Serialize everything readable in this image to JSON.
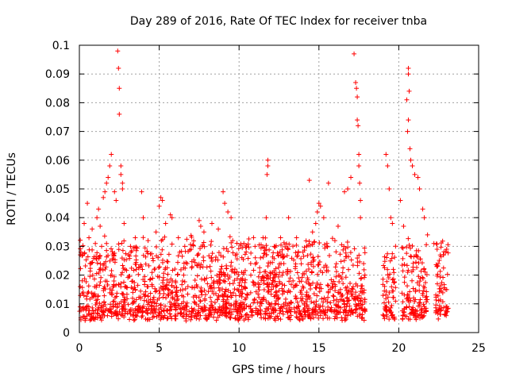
{
  "chart_data": {
    "type": "scatter",
    "title": "Day 289 of 2016, Rate Of TEC Index for receiver tnba",
    "xlabel": "GPS time / hours",
    "ylabel": "ROTI / TECUs",
    "xlim": [
      0,
      25
    ],
    "ylim": [
      0,
      0.1
    ],
    "x_ticks": [
      0,
      5,
      10,
      15,
      20,
      25
    ],
    "y_ticks": [
      0,
      0.01,
      0.02,
      0.03,
      0.04,
      0.05,
      0.06,
      0.07,
      0.08,
      0.09,
      0.1
    ],
    "x_tick_labels": [
      "0",
      "5",
      "10",
      "15",
      "20",
      "25"
    ],
    "y_tick_labels": [
      "0",
      "0.01",
      "0.02",
      "0.03",
      "0.04",
      "0.05",
      "0.06",
      "0.07",
      "0.08",
      "0.09",
      "0.1"
    ],
    "grid": true,
    "marker": "+",
    "series": [
      {
        "name": "ROTI",
        "color": "#ff0000",
        "points": [
          [
            0.1,
            0.028
          ],
          [
            0.2,
            0.027
          ],
          [
            0.3,
            0.038
          ],
          [
            0.5,
            0.045
          ],
          [
            0.6,
            0.033
          ],
          [
            0.8,
            0.036
          ],
          [
            1.0,
            0.031
          ],
          [
            1.1,
            0.04
          ],
          [
            1.2,
            0.043
          ],
          [
            1.3,
            0.037
          ],
          [
            1.5,
            0.047
          ],
          [
            1.6,
            0.049
          ],
          [
            1.7,
            0.052
          ],
          [
            1.8,
            0.054
          ],
          [
            1.9,
            0.058
          ],
          [
            2.0,
            0.062
          ],
          [
            2.2,
            0.049
          ],
          [
            2.3,
            0.046
          ],
          [
            2.4,
            0.098
          ],
          [
            2.45,
            0.092
          ],
          [
            2.5,
            0.085
          ],
          [
            2.5,
            0.076
          ],
          [
            2.6,
            0.058
          ],
          [
            2.6,
            0.055
          ],
          [
            2.7,
            0.052
          ],
          [
            2.7,
            0.05
          ],
          [
            2.8,
            0.038
          ],
          [
            3.2,
            0.03
          ],
          [
            3.5,
            0.033
          ],
          [
            3.9,
            0.049
          ],
          [
            4.0,
            0.04
          ],
          [
            4.3,
            0.032
          ],
          [
            4.8,
            0.035
          ],
          [
            5.0,
            0.044
          ],
          [
            5.1,
            0.047
          ],
          [
            5.2,
            0.046
          ],
          [
            5.4,
            0.038
          ],
          [
            5.7,
            0.041
          ],
          [
            5.8,
            0.04
          ],
          [
            6.2,
            0.033
          ],
          [
            6.6,
            0.03
          ],
          [
            7.0,
            0.029
          ],
          [
            7.5,
            0.039
          ],
          [
            7.6,
            0.037
          ],
          [
            7.8,
            0.035
          ],
          [
            8.3,
            0.038
          ],
          [
            8.7,
            0.036
          ],
          [
            9.0,
            0.049
          ],
          [
            9.1,
            0.045
          ],
          [
            9.3,
            0.042
          ],
          [
            9.5,
            0.04
          ],
          [
            9.6,
            0.032
          ],
          [
            10.3,
            0.031
          ],
          [
            11.0,
            0.03
          ],
          [
            11.5,
            0.033
          ],
          [
            11.8,
            0.06
          ],
          [
            11.8,
            0.058
          ],
          [
            11.75,
            0.055
          ],
          [
            11.7,
            0.04
          ],
          [
            12.2,
            0.03
          ],
          [
            12.6,
            0.033
          ],
          [
            13.1,
            0.04
          ],
          [
            13.6,
            0.033
          ],
          [
            14.0,
            0.028
          ],
          [
            14.4,
            0.053
          ],
          [
            14.6,
            0.035
          ],
          [
            14.8,
            0.038
          ],
          [
            14.9,
            0.042
          ],
          [
            15.0,
            0.045
          ],
          [
            15.1,
            0.044
          ],
          [
            15.3,
            0.04
          ],
          [
            15.5,
            0.031
          ],
          [
            15.6,
            0.052
          ],
          [
            16.0,
            0.032
          ],
          [
            16.2,
            0.037
          ],
          [
            16.6,
            0.049
          ],
          [
            16.8,
            0.05
          ],
          [
            17.0,
            0.054
          ],
          [
            17.2,
            0.097
          ],
          [
            17.3,
            0.087
          ],
          [
            17.35,
            0.085
          ],
          [
            17.4,
            0.082
          ],
          [
            17.4,
            0.074
          ],
          [
            17.45,
            0.072
          ],
          [
            17.5,
            0.062
          ],
          [
            17.5,
            0.058
          ],
          [
            17.55,
            0.052
          ],
          [
            17.6,
            0.046
          ],
          [
            17.6,
            0.04
          ],
          [
            19.2,
            0.062
          ],
          [
            19.3,
            0.058
          ],
          [
            19.4,
            0.05
          ],
          [
            19.5,
            0.04
          ],
          [
            19.6,
            0.038
          ],
          [
            20.1,
            0.046
          ],
          [
            20.3,
            0.037
          ],
          [
            20.5,
            0.081
          ],
          [
            20.6,
            0.092
          ],
          [
            20.6,
            0.09
          ],
          [
            20.65,
            0.084
          ],
          [
            20.6,
            0.074
          ],
          [
            20.55,
            0.07
          ],
          [
            20.7,
            0.064
          ],
          [
            20.75,
            0.06
          ],
          [
            20.85,
            0.058
          ],
          [
            21.0,
            0.055
          ],
          [
            21.2,
            0.054
          ],
          [
            21.3,
            0.05
          ],
          [
            21.5,
            0.043
          ],
          [
            21.6,
            0.04
          ],
          [
            21.8,
            0.034
          ],
          [
            22.2,
            0.031
          ],
          [
            22.4,
            0.029
          ],
          [
            22.8,
            0.027
          ],
          [
            23.0,
            0.029
          ],
          [
            22.6,
            0.027
          ]
        ]
      }
    ]
  }
}
